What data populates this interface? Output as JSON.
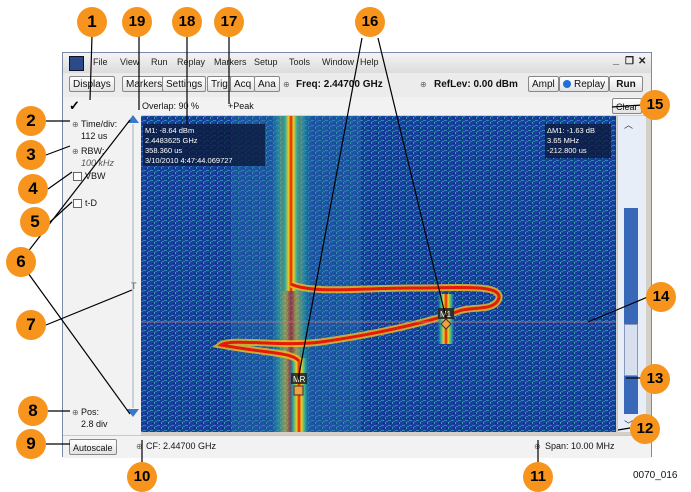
{
  "menu": [
    "File",
    "View",
    "Run",
    "Replay",
    "Markers",
    "Setup",
    "Tools",
    "Window",
    "Help"
  ],
  "window_controls": {
    "minimize": "_",
    "restore": "❐",
    "close": "✕"
  },
  "toolbar": {
    "displays": "Displays",
    "markers": "Markers",
    "settings": "Settings",
    "trig": "Trig",
    "acq": "Acq",
    "ana": "Ana",
    "freq": "Freq: 2.44700 GHz",
    "reflev": "RefLev: 0.00 dBm",
    "ampl": "Ampl",
    "replay": "Replay",
    "run": "Run"
  },
  "status_row": {
    "check": "✓",
    "overlap": "Overlap: 90 %",
    "peak": "+Peak",
    "clear": "Clear"
  },
  "left_panel": {
    "time_div_label": "Time/div:",
    "time_div_value": "112 us",
    "rbw_label": "RBW:",
    "rbw_value": "100 kHz",
    "vbw_label": "VBW",
    "td_label": "t-D",
    "trigger_marker": "T",
    "pos_label": "Pos:",
    "pos_value": "2.8 div",
    "autoscale": "Autoscale"
  },
  "bottom_bar": {
    "cf": "CF: 2.44700 GHz",
    "span": "Span: 10.00 MHz"
  },
  "marker_readout": {
    "line1": "M1: -8.64 dBm",
    "line2": "2.4483625 GHz",
    "line3": "358.360 us",
    "line4": "3/10/2010 4:47:44.069727"
  },
  "delta_readout": {
    "line1": "ΔM1: -1.63 dB",
    "line2": "3.65 MHz",
    "line3": "-212.800 us"
  },
  "markers": {
    "m1": "M1",
    "mr": "MR"
  },
  "callouts": [
    "1",
    "2",
    "3",
    "4",
    "5",
    "6",
    "7",
    "8",
    "9",
    "10",
    "11",
    "12",
    "13",
    "14",
    "15",
    "16",
    "17",
    "18",
    "19"
  ],
  "figure_id": "0070_016",
  "colors": {
    "plot_bg": "#163a8c",
    "trace_hot": "#e81808",
    "trace_warm": "#f0c020",
    "callout": "#f7941d",
    "leader": "#000000"
  }
}
